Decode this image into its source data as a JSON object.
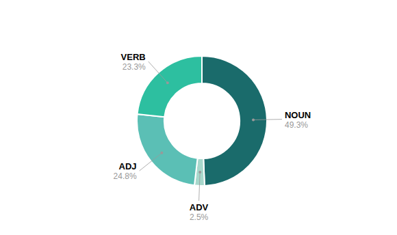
{
  "chart_data": {
    "type": "donut",
    "categories": [
      "NOUN",
      "ADV",
      "ADJ",
      "VERB"
    ],
    "values": [
      49.3,
      2.5,
      24.8,
      23.3
    ],
    "value_labels": [
      "49.3%",
      "2.5%",
      "24.8%",
      "23.3%"
    ],
    "colors": [
      "#1a6b6b",
      "#a8d8cc",
      "#5bbfb5",
      "#2dbfa0"
    ],
    "data_labels": true
  }
}
